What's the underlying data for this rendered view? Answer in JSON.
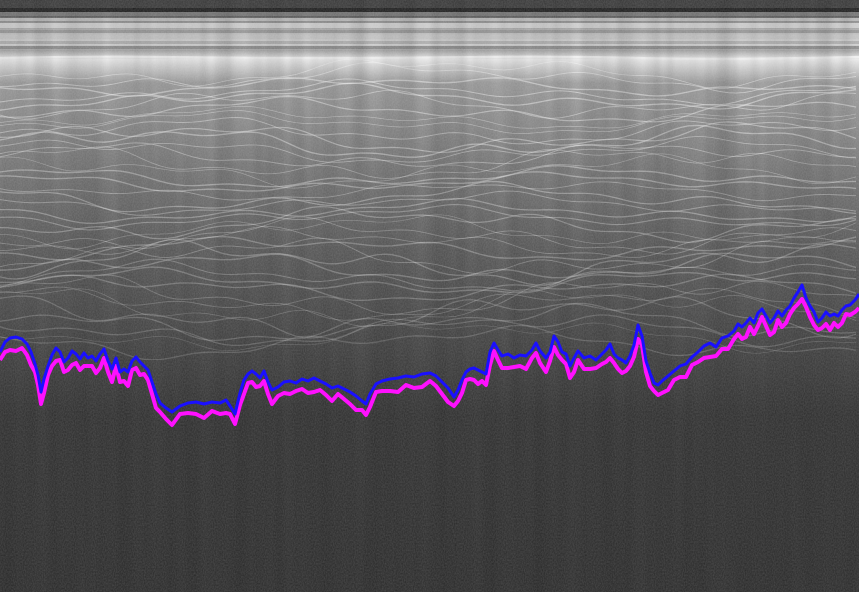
{
  "image": {
    "kind": "radar-echogram",
    "colors": {
      "bed_pick_upper": "#1a10ff",
      "bed_pick_lower": "#ff10ff",
      "background_dark": "#2a2a2a",
      "surface_band_light": "#e6e6e6"
    }
  }
}
